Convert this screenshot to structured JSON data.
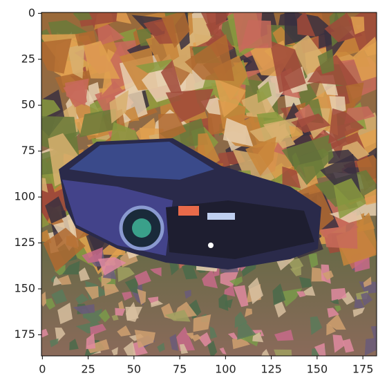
{
  "chart_data": {
    "type": "image",
    "xlim": [
      -0.5,
      182.5
    ],
    "ylim": [
      186.5,
      -0.5
    ],
    "xticks": [
      0,
      25,
      50,
      75,
      100,
      125,
      150,
      175
    ],
    "yticks": [
      0,
      25,
      50,
      75,
      100,
      125,
      150,
      175
    ]
  }
}
